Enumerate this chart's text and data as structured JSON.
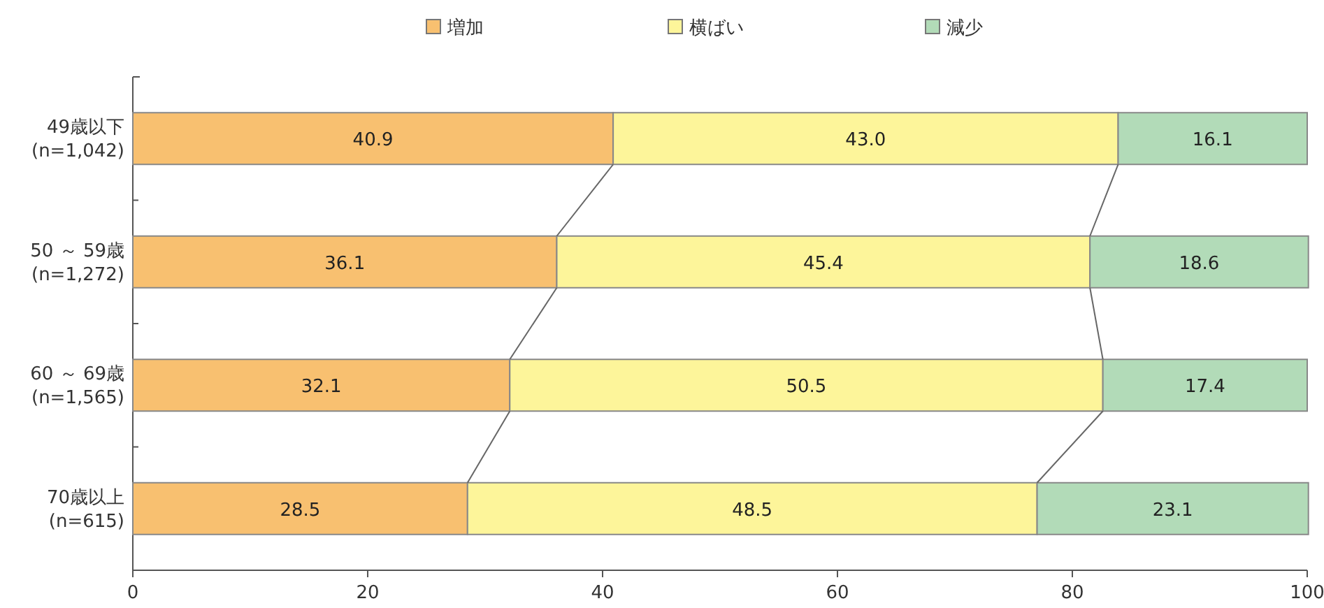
{
  "chart_data": {
    "type": "bar",
    "orientation": "horizontal",
    "stacked": true,
    "legend": "top",
    "grid": false,
    "categories": [
      "49歳以下\n(n=1,042)",
      "50 ～ 59歳\n(n=1,272)",
      "60 ～ 69歳\n(n=1,565)",
      "70歳以上\n(n=615)"
    ],
    "series": [
      {
        "name": "増加",
        "color": "#f8c070",
        "values": [
          40.9,
          36.1,
          32.1,
          28.5
        ],
        "value_labels": [
          "40.9",
          "36.1",
          "32.1",
          "28.5"
        ]
      },
      {
        "name": "横ばい",
        "color": "#fdf59a",
        "values": [
          43.0,
          45.4,
          50.5,
          48.5
        ],
        "value_labels": [
          "43.0",
          "45.4",
          "50.5",
          "48.5"
        ]
      },
      {
        "name": "減少",
        "color": "#b2dbb8",
        "values": [
          16.1,
          18.6,
          17.4,
          23.1
        ],
        "value_labels": [
          "16.1",
          "18.6",
          "17.4",
          "23.1"
        ]
      }
    ],
    "xlim": [
      0,
      100
    ],
    "xticks": [
      0,
      20,
      40,
      60,
      80,
      100
    ]
  }
}
